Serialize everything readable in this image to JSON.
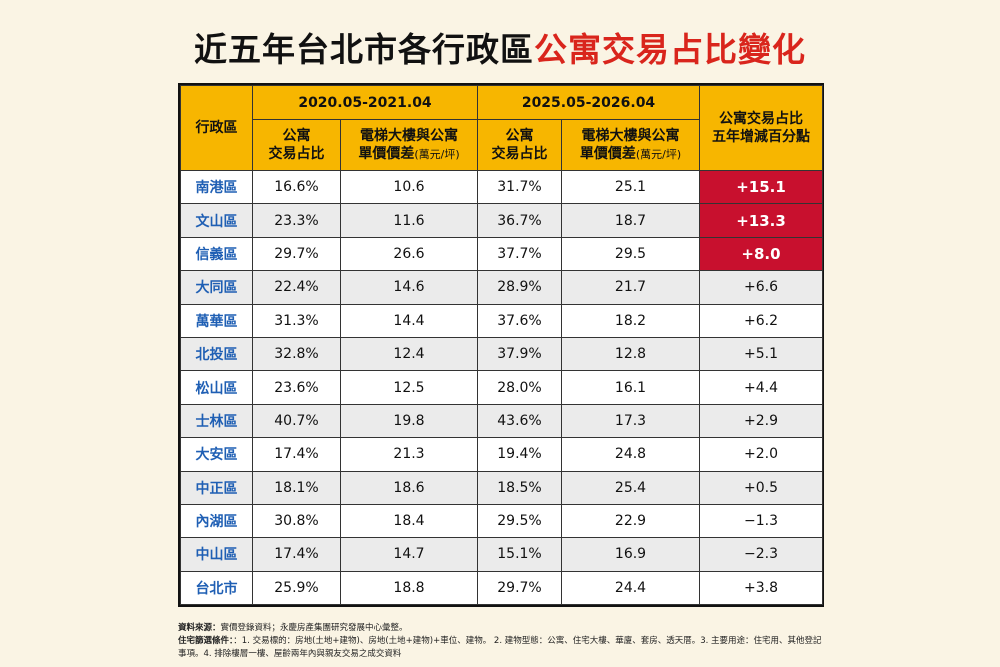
{
  "title": {
    "part1": "近五年台北市各行政區",
    "part2": "公寓交易占比變化"
  },
  "headers": {
    "district": "行政區",
    "period1": "2020.05-2021.04",
    "period2": "2025.05-2026.04",
    "change_line1": "公寓交易占比",
    "change_line2": "五年增減百分點",
    "share_line1": "公寓",
    "share_line2": "交易占比",
    "diff_line1": "電梯大樓與公寓",
    "diff_line2": "單價價差",
    "diff_unit": "(萬元/坪)"
  },
  "chart_data": {
    "type": "table",
    "title": "近五年台北市各行政區公寓交易占比變化",
    "columns": [
      "行政區",
      "2020.05-2021.04 公寓交易占比",
      "2020.05-2021.04 電梯大樓與公寓單價價差(萬元/坪)",
      "2025.05-2026.04 公寓交易占比",
      "2025.05-2026.04 電梯大樓與公寓單價價差(萬元/坪)",
      "公寓交易占比五年增減百分點"
    ],
    "rows": [
      {
        "district": "南港區",
        "share1": "16.6%",
        "diff1": "10.6",
        "share2": "31.7%",
        "diff2": "25.1",
        "change": "+15.1",
        "highlight": true
      },
      {
        "district": "文山區",
        "share1": "23.3%",
        "diff1": "11.6",
        "share2": "36.7%",
        "diff2": "18.7",
        "change": "+13.3",
        "highlight": true
      },
      {
        "district": "信義區",
        "share1": "29.7%",
        "diff1": "26.6",
        "share2": "37.7%",
        "diff2": "29.5",
        "change": "+8.0",
        "highlight": true
      },
      {
        "district": "大同區",
        "share1": "22.4%",
        "diff1": "14.6",
        "share2": "28.9%",
        "diff2": "21.7",
        "change": "+6.6",
        "highlight": false
      },
      {
        "district": "萬華區",
        "share1": "31.3%",
        "diff1": "14.4",
        "share2": "37.6%",
        "diff2": "18.2",
        "change": "+6.2",
        "highlight": false
      },
      {
        "district": "北投區",
        "share1": "32.8%",
        "diff1": "12.4",
        "share2": "37.9%",
        "diff2": "12.8",
        "change": "+5.1",
        "highlight": false
      },
      {
        "district": "松山區",
        "share1": "23.6%",
        "diff1": "12.5",
        "share2": "28.0%",
        "diff2": "16.1",
        "change": "+4.4",
        "highlight": false
      },
      {
        "district": "士林區",
        "share1": "40.7%",
        "diff1": "19.8",
        "share2": "43.6%",
        "diff2": "17.3",
        "change": "+2.9",
        "highlight": false
      },
      {
        "district": "大安區",
        "share1": "17.4%",
        "diff1": "21.3",
        "share2": "19.4%",
        "diff2": "24.8",
        "change": "+2.0",
        "highlight": false
      },
      {
        "district": "中正區",
        "share1": "18.1%",
        "diff1": "18.6",
        "share2": "18.5%",
        "diff2": "25.4",
        "change": "+0.5",
        "highlight": false
      },
      {
        "district": "內湖區",
        "share1": "30.8%",
        "diff1": "18.4",
        "share2": "29.5%",
        "diff2": "22.9",
        "change": "−1.3",
        "highlight": false
      },
      {
        "district": "中山區",
        "share1": "17.4%",
        "diff1": "14.7",
        "share2": "15.1%",
        "diff2": "16.9",
        "change": "−2.3",
        "highlight": false
      },
      {
        "district": "台北市",
        "share1": "25.9%",
        "diff1": "18.8",
        "share2": "29.7%",
        "diff2": "24.4",
        "change": "+3.8",
        "highlight": false
      }
    ]
  },
  "colors": {
    "header": "#f7b600",
    "highlight": "#c8102e",
    "district_text": "#1f5fb4",
    "title_red": "#d9251c"
  },
  "footer": {
    "source_label": "資料來源：",
    "source_text": "實價登錄資料；永慶房產集團研究發展中心彙整。",
    "criteria_label": "住宅篩選條件：",
    "criteria_text": "：1. 交易標的：房地(土地+建物)、房地(土地+建物)+車位、建物。 2. 建物型態：公寓、住宅大樓、華廈、套房、透天厝。3. 主要用途：住宅用、其他登記事項。4. 排除樓層一樓、屋齡兩年內與親友交易之成交資料"
  }
}
